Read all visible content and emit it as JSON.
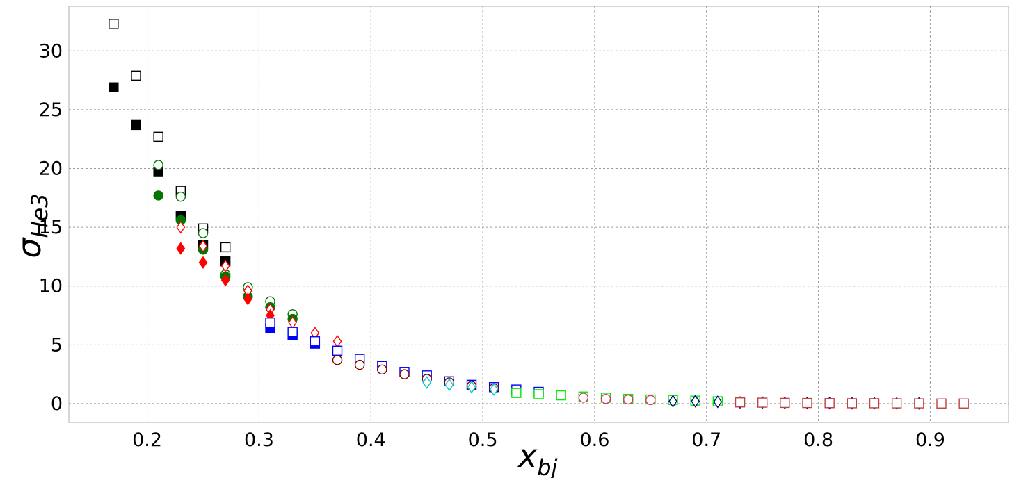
{
  "chart_data": {
    "type": "scatter",
    "title": "",
    "xlabel": "x",
    "xlabel_sub": "bj",
    "ylabel": "σ",
    "ylabel_sub": "He3",
    "xlim": [
      0.13,
      0.97
    ],
    "ylim": [
      -1.6,
      33.8
    ],
    "xticks": [
      0.2,
      0.3,
      0.4,
      0.5,
      0.6,
      0.7,
      0.8,
      0.9
    ],
    "xtick_labels": [
      "0.2",
      "0.3",
      "0.4",
      "0.5",
      "0.6",
      "0.7",
      "0.8",
      "0.9"
    ],
    "yticks": [
      0,
      5,
      10,
      15,
      20,
      25,
      30
    ],
    "ytick_labels": [
      "0",
      "5",
      "10",
      "15",
      "20",
      "25",
      "30"
    ],
    "grid": true,
    "legend": "none",
    "series": [
      {
        "marker": "square",
        "filled": false,
        "color": "#000000",
        "x": [
          0.17,
          0.19,
          0.21,
          0.23,
          0.25,
          0.27
        ],
        "y": [
          32.3,
          27.9,
          22.7,
          18.1,
          14.9,
          13.3
        ]
      },
      {
        "marker": "square",
        "filled": true,
        "color": "#000000",
        "x": [
          0.17,
          0.19,
          0.21,
          0.23,
          0.25,
          0.27
        ],
        "y": [
          26.9,
          23.7,
          19.7,
          16.0,
          13.5,
          12.1
        ]
      },
      {
        "marker": "circle",
        "filled": false,
        "color": "#007700",
        "x": [
          0.21,
          0.23,
          0.25,
          0.27,
          0.29,
          0.31,
          0.33
        ],
        "y": [
          20.3,
          17.6,
          14.5,
          11.0,
          9.9,
          8.7,
          7.6
        ]
      },
      {
        "marker": "circle",
        "filled": true,
        "color": "#007700",
        "x": [
          0.21,
          0.23,
          0.25,
          0.27,
          0.29,
          0.31,
          0.33
        ],
        "y": [
          17.7,
          15.6,
          13.1,
          10.8,
          9.1,
          8.2,
          7.2
        ]
      },
      {
        "marker": "diamond",
        "filled": false,
        "color": "#ff0000",
        "x": [
          0.23,
          0.25,
          0.27,
          0.29,
          0.31,
          0.33,
          0.35,
          0.37
        ],
        "y": [
          15.0,
          13.4,
          11.7,
          9.6,
          8.0,
          6.9,
          6.0,
          5.3
        ]
      },
      {
        "marker": "diamond",
        "filled": true,
        "color": "#ff0000",
        "x": [
          0.23,
          0.25,
          0.27,
          0.29,
          0.31
        ],
        "y": [
          13.2,
          12.0,
          10.5,
          8.9,
          7.5
        ]
      },
      {
        "marker": "square",
        "filled": true,
        "color": "#0000ff",
        "x": [
          0.31,
          0.33,
          0.35
        ],
        "y": [
          6.4,
          5.8,
          5.1
        ]
      },
      {
        "marker": "square",
        "filled": false,
        "color": "#0000ff",
        "x": [
          0.31,
          0.33,
          0.35,
          0.37,
          0.39,
          0.41,
          0.43,
          0.45,
          0.47,
          0.49,
          0.51,
          0.53,
          0.55
        ],
        "y": [
          6.9,
          6.1,
          5.3,
          4.5,
          3.8,
          3.2,
          2.7,
          2.4,
          1.9,
          1.6,
          1.4,
          1.2,
          1.0
        ]
      },
      {
        "marker": "circle",
        "filled": false,
        "color": "#800000",
        "x": [
          0.37,
          0.39,
          0.41,
          0.43,
          0.45,
          0.47,
          0.49,
          0.51
        ],
        "y": [
          3.7,
          3.3,
          2.9,
          2.5,
          2.1,
          1.8,
          1.5,
          1.3
        ]
      },
      {
        "marker": "diamond",
        "filled": false,
        "color": "#00cccc",
        "x": [
          0.45,
          0.47,
          0.49,
          0.51
        ],
        "y": [
          1.8,
          1.6,
          1.4,
          1.2
        ]
      },
      {
        "marker": "square",
        "filled": false,
        "color": "#00ee00",
        "x": [
          0.53,
          0.55,
          0.57,
          0.59,
          0.61,
          0.63,
          0.65,
          0.67,
          0.69,
          0.71,
          0.73
        ],
        "y": [
          0.9,
          0.8,
          0.7,
          0.6,
          0.5,
          0.4,
          0.35,
          0.3,
          0.25,
          0.2,
          0.15
        ]
      },
      {
        "marker": "diamond",
        "filled": false,
        "color": "#000080",
        "x": [
          0.67,
          0.69,
          0.71,
          0.73,
          0.75,
          0.77,
          0.79,
          0.81,
          0.83,
          0.85,
          0.87,
          0.89
        ],
        "y": [
          0.2,
          0.2,
          0.15,
          0.1,
          0.08,
          0.06,
          0.05,
          0.04,
          0.03,
          0.03,
          0.02,
          0.02
        ]
      },
      {
        "marker": "circle",
        "filled": false,
        "color": "#e0306a",
        "x": [
          0.59,
          0.61,
          0.63,
          0.65
        ],
        "y": [
          0.5,
          0.4,
          0.35,
          0.3
        ]
      },
      {
        "marker": "square",
        "filled": false,
        "color": "#c04040",
        "x": [
          0.73,
          0.75,
          0.77,
          0.79,
          0.81,
          0.83,
          0.85,
          0.87,
          0.89,
          0.91,
          0.93
        ],
        "y": [
          0.1,
          0.08,
          0.06,
          0.05,
          0.04,
          0.03,
          0.03,
          0.02,
          0.02,
          0.01,
          0.01
        ]
      }
    ]
  }
}
